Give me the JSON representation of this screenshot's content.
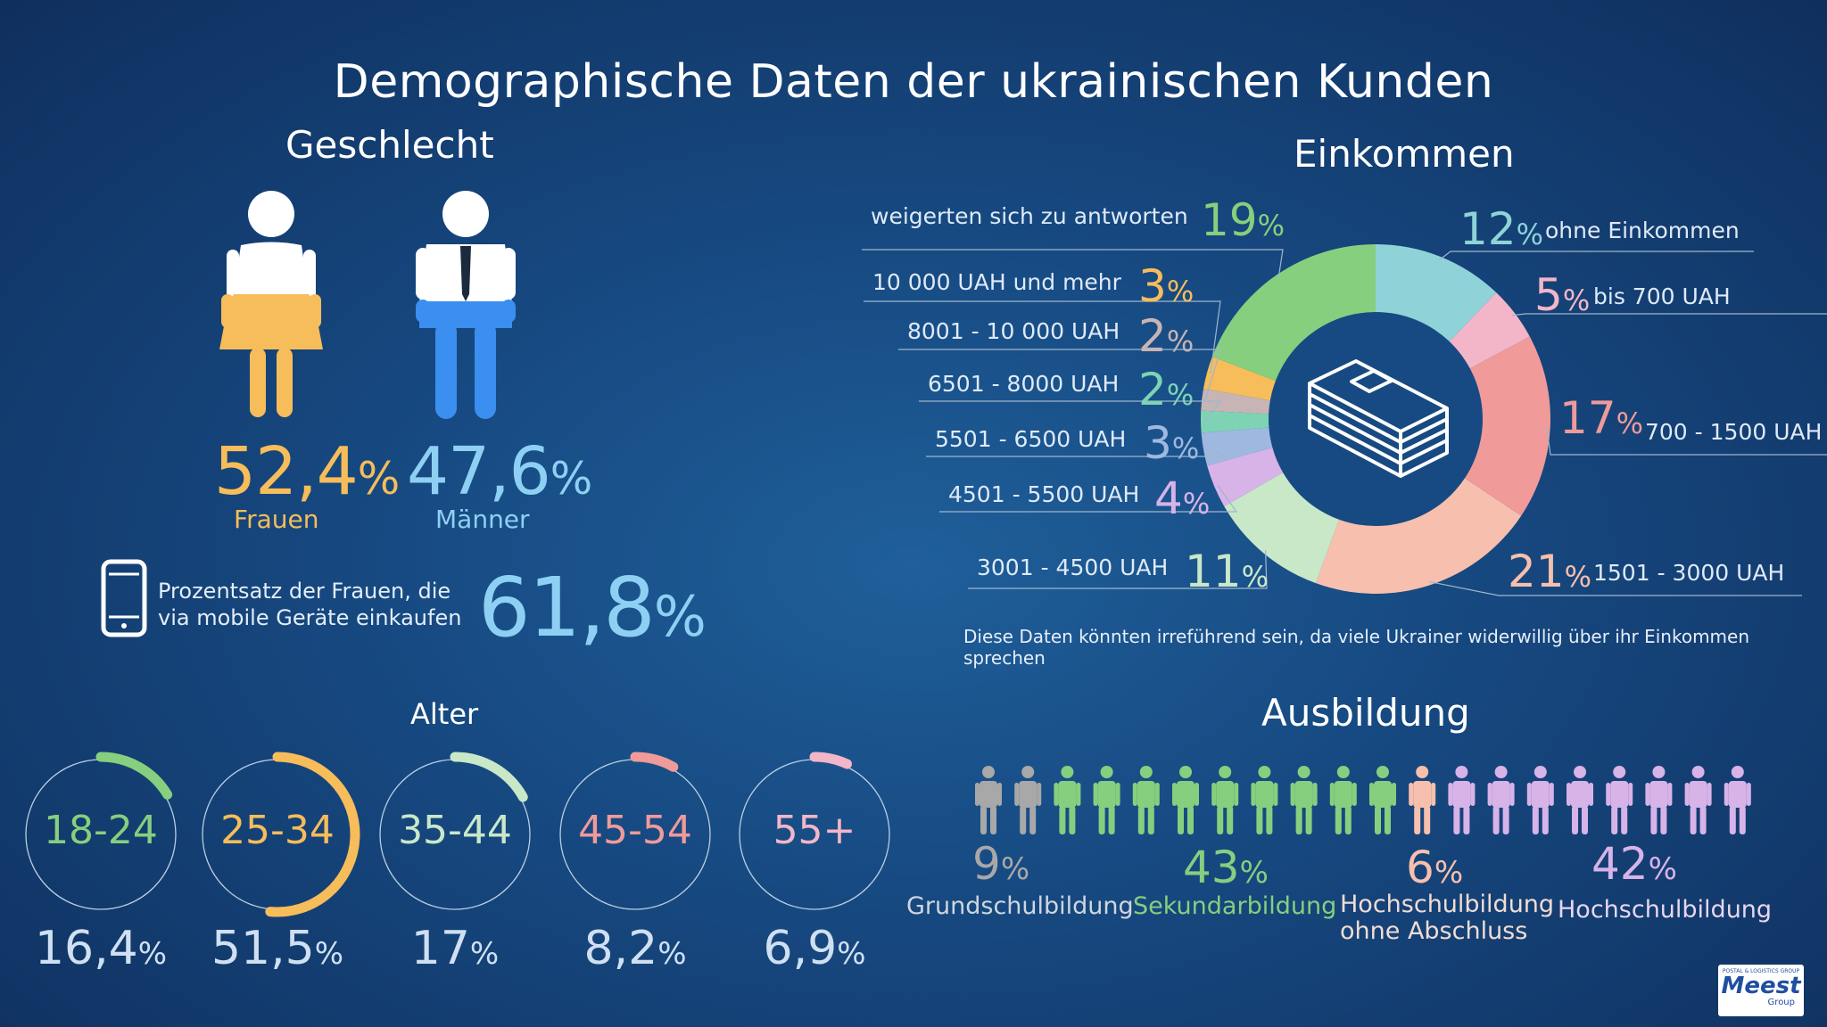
{
  "title": "Demographische Daten der ukrainischen Kunden",
  "gender": {
    "heading": "Geschlecht",
    "women": {
      "value": "52,4",
      "unit": "%",
      "label": "Frauen",
      "color": "#f6bd5a"
    },
    "men": {
      "value": "47,6",
      "unit": "%",
      "label": "Männer",
      "color": "#8ed0f3"
    },
    "mobile_text_1": "Prozentsatz der Frauen, die",
    "mobile_text_2": "via mobile Geräte einkaufen",
    "mobile_value": "61,8",
    "mobile_unit": "%"
  },
  "income": {
    "heading": "Einkommen",
    "note": "Diese Daten könnten irreführend sein, da viele Ukrainer widerwillig über ihr Einkommen sprechen",
    "items": [
      {
        "label": "ohne Einkommen",
        "value": "12",
        "unit": "%",
        "color": "#8fd3d8"
      },
      {
        "label": "bis 700 UAH",
        "value": "5",
        "unit": "%",
        "color": "#f3b6c8"
      },
      {
        "label": "700 - 1500 UAH",
        "value": "17",
        "unit": "%",
        "color": "#f09a9a"
      },
      {
        "label": "1501 - 3000 UAH",
        "value": "21",
        "unit": "%",
        "color": "#f7bfae"
      },
      {
        "label": "3001 - 4500 UAH",
        "value": "11",
        "unit": "%",
        "color": "#c9e8c8"
      },
      {
        "label": "4501 - 5500 UAH",
        "value": "4",
        "unit": "%",
        "color": "#d7b3e8"
      },
      {
        "label": "5501 - 6500 UAH",
        "value": "3",
        "unit": "%",
        "color": "#9fb8e0"
      },
      {
        "label": "6501 - 8000 UAH",
        "value": "2",
        "unit": "%",
        "color": "#7ed3b4"
      },
      {
        "label": "8001 - 10 000 UAH",
        "value": "2",
        "unit": "%",
        "color": "#c7b4b4"
      },
      {
        "label": "10 000 UAH und mehr",
        "value": "3",
        "unit": "%",
        "color": "#f6bd5a"
      },
      {
        "label": "weigerten sich zu antworten",
        "value": "19",
        "unit": "%",
        "color": "#86cf7e"
      }
    ]
  },
  "chart_data": {
    "type": "pie",
    "title": "Einkommen",
    "categories": [
      "ohne Einkommen",
      "bis 700 UAH",
      "700 - 1500 UAH",
      "1501 - 3000 UAH",
      "3001 - 4500 UAH",
      "4501 - 5500 UAH",
      "5501 - 6500 UAH",
      "6501 - 8000 UAH",
      "8001 - 10 000 UAH",
      "10 000 UAH und mehr",
      "weigerten sich zu antworten"
    ],
    "values": [
      12,
      5,
      17,
      21,
      11,
      4,
      3,
      2,
      2,
      3,
      19
    ]
  },
  "age": {
    "heading": "Alter",
    "groups": [
      {
        "label": "18-24",
        "value": "16,4",
        "fraction": 0.164,
        "unit": "%",
        "color": "#86cf7e"
      },
      {
        "label": "25-34",
        "value": "51,5",
        "fraction": 0.515,
        "unit": "%",
        "color": "#f6bd5a"
      },
      {
        "label": "35-44",
        "value": "17",
        "fraction": 0.17,
        "unit": "%",
        "color": "#c9e8c8"
      },
      {
        "label": "45-54",
        "value": "8,2",
        "fraction": 0.082,
        "unit": "%",
        "color": "#f09a9a"
      },
      {
        "label": "55+",
        "value": "6,9",
        "fraction": 0.069,
        "unit": "%",
        "color": "#f3b6c8"
      }
    ]
  },
  "education": {
    "heading": "Ausbildung",
    "figures": [
      "#a8a8a8",
      "#a8a8a8",
      "#86cf7e",
      "#86cf7e",
      "#86cf7e",
      "#86cf7e",
      "#86cf7e",
      "#86cf7e",
      "#86cf7e",
      "#86cf7e",
      "#86cf7e",
      "#f7bfae",
      "#d7b3e8",
      "#d7b3e8",
      "#d7b3e8",
      "#d7b3e8",
      "#d7b3e8",
      "#d7b3e8",
      "#d7b3e8",
      "#d7b3e8"
    ],
    "items": [
      {
        "value": "9",
        "unit": "%",
        "label1": "Grundschulbildung",
        "label2": "",
        "color": "#a8a8a8",
        "label_color": "#cfd6de"
      },
      {
        "value": "43",
        "unit": "%",
        "label1": "Sekundarbildung",
        "label2": "",
        "color": "#86cf7e",
        "label_color": "#86cf7e"
      },
      {
        "value": "6",
        "unit": "%",
        "label1": "Hochschulbildung",
        "label2": "ohne Abschluss",
        "color": "#f7bfae",
        "label_color": "#f1dcd4"
      },
      {
        "value": "42",
        "unit": "%",
        "label1": "Hochschulbildung",
        "label2": "",
        "color": "#d7b3e8",
        "label_color": "#e6d6ee"
      }
    ]
  },
  "logo": {
    "small": "POSTAL & LOGISTICS GROUP",
    "name": "Meest",
    "sub": "Group"
  }
}
